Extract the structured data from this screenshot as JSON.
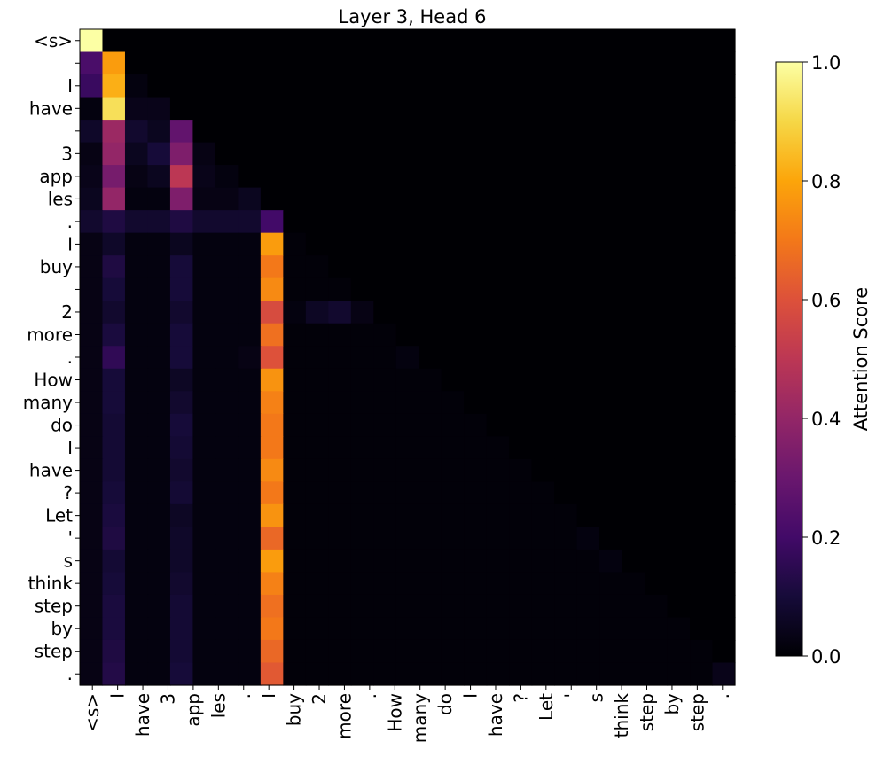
{
  "chart_data": {
    "type": "heatmap",
    "title": "Layer 3, Head 6",
    "tokens": [
      "<s>",
      "",
      "I",
      "have",
      "",
      "3",
      "app",
      "les",
      ".",
      "I",
      "buy",
      "",
      "2",
      "more",
      ".",
      "How",
      "many",
      "do",
      "I",
      "have",
      "?",
      "Let",
      "'",
      "s",
      "think",
      "step",
      "by",
      "step",
      "."
    ],
    "x_tick_labels": [
      "<s>",
      "I",
      "have",
      "3",
      "app",
      "les",
      ".",
      "I",
      "buy",
      "2",
      "more",
      ".",
      "How",
      "many",
      "do",
      "I",
      "have",
      "?",
      "Let",
      "'",
      "s",
      "think",
      "step",
      "by",
      "step",
      "."
    ],
    "colorbar": {
      "label": "Attention Score",
      "min": 0.0,
      "max": 1.0,
      "ticks": [
        0.0,
        0.2,
        0.4,
        0.6,
        0.8,
        1.0
      ],
      "tick_labels": [
        "0.0",
        "0.2",
        "0.4",
        "0.6",
        "0.8",
        "1.0"
      ],
      "colormap": "inferno"
    },
    "matrix": [
      [
        1.0
      ],
      [
        0.22,
        0.78
      ],
      [
        0.18,
        0.82,
        0.02
      ],
      [
        0.02,
        0.92,
        0.04,
        0.04
      ],
      [
        0.07,
        0.42,
        0.08,
        0.05,
        0.28
      ],
      [
        0.03,
        0.4,
        0.05,
        0.1,
        0.35,
        0.03
      ],
      [
        0.04,
        0.33,
        0.03,
        0.05,
        0.5,
        0.04,
        0.02
      ],
      [
        0.05,
        0.4,
        0.02,
        0.02,
        0.35,
        0.03,
        0.03,
        0.05
      ],
      [
        0.08,
        0.12,
        0.08,
        0.08,
        0.12,
        0.08,
        0.08,
        0.08,
        0.2
      ],
      [
        0.03,
        0.07,
        0.02,
        0.02,
        0.05,
        0.02,
        0.02,
        0.02,
        0.78,
        0.01
      ],
      [
        0.03,
        0.12,
        0.02,
        0.02,
        0.1,
        0.02,
        0.02,
        0.02,
        0.7,
        0.01,
        0.01
      ],
      [
        0.03,
        0.1,
        0.02,
        0.02,
        0.1,
        0.02,
        0.02,
        0.02,
        0.74,
        0.01,
        0.01,
        0.01
      ],
      [
        0.03,
        0.08,
        0.02,
        0.02,
        0.08,
        0.02,
        0.02,
        0.02,
        0.58,
        0.02,
        0.06,
        0.08,
        0.03
      ],
      [
        0.03,
        0.11,
        0.02,
        0.02,
        0.1,
        0.02,
        0.02,
        0.02,
        0.68,
        0.01,
        0.01,
        0.01,
        0.01,
        0.01
      ],
      [
        0.03,
        0.16,
        0.02,
        0.02,
        0.1,
        0.02,
        0.02,
        0.03,
        0.6,
        0.01,
        0.01,
        0.01,
        0.01,
        0.01,
        0.02
      ],
      [
        0.03,
        0.1,
        0.02,
        0.02,
        0.06,
        0.02,
        0.02,
        0.02,
        0.76,
        0.01,
        0.01,
        0.01,
        0.01,
        0.01,
        0.01,
        0.01
      ],
      [
        0.03,
        0.1,
        0.02,
        0.02,
        0.08,
        0.02,
        0.02,
        0.02,
        0.72,
        0.01,
        0.01,
        0.01,
        0.01,
        0.01,
        0.01,
        0.01,
        0.01
      ],
      [
        0.03,
        0.09,
        0.02,
        0.02,
        0.1,
        0.02,
        0.02,
        0.02,
        0.7,
        0.01,
        0.01,
        0.01,
        0.01,
        0.01,
        0.01,
        0.01,
        0.01,
        0.01
      ],
      [
        0.03,
        0.09,
        0.02,
        0.02,
        0.09,
        0.02,
        0.02,
        0.02,
        0.7,
        0.01,
        0.01,
        0.01,
        0.01,
        0.01,
        0.01,
        0.01,
        0.01,
        0.01,
        0.01
      ],
      [
        0.03,
        0.09,
        0.02,
        0.02,
        0.08,
        0.02,
        0.02,
        0.02,
        0.74,
        0.01,
        0.01,
        0.01,
        0.01,
        0.01,
        0.01,
        0.01,
        0.01,
        0.01,
        0.01,
        0.01
      ],
      [
        0.03,
        0.1,
        0.02,
        0.02,
        0.09,
        0.02,
        0.02,
        0.02,
        0.7,
        0.01,
        0.01,
        0.01,
        0.01,
        0.01,
        0.01,
        0.01,
        0.01,
        0.01,
        0.01,
        0.01,
        0.01
      ],
      [
        0.03,
        0.11,
        0.02,
        0.02,
        0.06,
        0.02,
        0.02,
        0.02,
        0.76,
        0.01,
        0.01,
        0.01,
        0.01,
        0.01,
        0.01,
        0.01,
        0.01,
        0.01,
        0.01,
        0.01,
        0.01,
        0.01
      ],
      [
        0.03,
        0.12,
        0.02,
        0.02,
        0.07,
        0.02,
        0.02,
        0.02,
        0.66,
        0.01,
        0.01,
        0.01,
        0.01,
        0.01,
        0.01,
        0.01,
        0.01,
        0.01,
        0.01,
        0.01,
        0.01,
        0.01,
        0.02
      ],
      [
        0.03,
        0.09,
        0.02,
        0.02,
        0.07,
        0.02,
        0.02,
        0.02,
        0.78,
        0.01,
        0.01,
        0.01,
        0.01,
        0.01,
        0.01,
        0.01,
        0.01,
        0.01,
        0.01,
        0.01,
        0.01,
        0.01,
        0.01,
        0.02
      ],
      [
        0.03,
        0.1,
        0.02,
        0.02,
        0.08,
        0.02,
        0.02,
        0.02,
        0.72,
        0.01,
        0.01,
        0.01,
        0.01,
        0.01,
        0.01,
        0.01,
        0.01,
        0.01,
        0.01,
        0.01,
        0.01,
        0.01,
        0.01,
        0.01,
        0.01
      ],
      [
        0.03,
        0.11,
        0.02,
        0.02,
        0.09,
        0.02,
        0.02,
        0.02,
        0.68,
        0.01,
        0.01,
        0.01,
        0.01,
        0.01,
        0.01,
        0.01,
        0.01,
        0.01,
        0.01,
        0.01,
        0.01,
        0.01,
        0.01,
        0.01,
        0.01,
        0.01
      ],
      [
        0.03,
        0.11,
        0.02,
        0.02,
        0.09,
        0.02,
        0.02,
        0.02,
        0.7,
        0.01,
        0.01,
        0.01,
        0.01,
        0.01,
        0.01,
        0.01,
        0.01,
        0.01,
        0.01,
        0.01,
        0.01,
        0.01,
        0.01,
        0.01,
        0.01,
        0.01,
        0.01
      ],
      [
        0.03,
        0.12,
        0.02,
        0.02,
        0.09,
        0.02,
        0.02,
        0.02,
        0.66,
        0.01,
        0.01,
        0.01,
        0.01,
        0.01,
        0.01,
        0.01,
        0.01,
        0.01,
        0.01,
        0.01,
        0.01,
        0.01,
        0.01,
        0.01,
        0.01,
        0.01,
        0.01,
        0.01
      ],
      [
        0.03,
        0.13,
        0.02,
        0.02,
        0.1,
        0.02,
        0.02,
        0.02,
        0.62,
        0.01,
        0.01,
        0.01,
        0.01,
        0.01,
        0.01,
        0.01,
        0.01,
        0.01,
        0.01,
        0.01,
        0.01,
        0.01,
        0.01,
        0.01,
        0.01,
        0.01,
        0.01,
        0.01,
        0.04
      ]
    ]
  }
}
